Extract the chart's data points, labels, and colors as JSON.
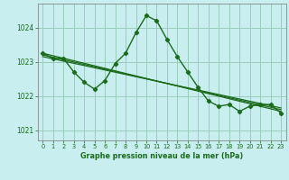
{
  "title": "Graphe pression niveau de la mer (hPa)",
  "bg_color": "#c8eef0",
  "grid_color": "#99ccbb",
  "line_color": "#1a6b1a",
  "xlim": [
    -0.5,
    23.5
  ],
  "ylim": [
    1020.7,
    1024.7
  ],
  "yticks": [
    1021,
    1022,
    1023,
    1024
  ],
  "xticks": [
    0,
    1,
    2,
    3,
    4,
    5,
    6,
    7,
    8,
    9,
    10,
    11,
    12,
    13,
    14,
    15,
    16,
    17,
    18,
    19,
    20,
    21,
    22,
    23
  ],
  "series": [
    {
      "x": [
        0,
        1,
        2,
        3,
        4,
        5,
        6,
        7,
        8,
        9,
        10,
        11,
        12,
        13,
        14,
        15,
        16,
        17,
        18,
        19,
        20,
        21,
        22,
        23
      ],
      "y": [
        1023.25,
        1023.1,
        1023.1,
        1022.7,
        1022.4,
        1022.2,
        1022.45,
        1022.95,
        1023.25,
        1023.85,
        1024.35,
        1024.2,
        1023.65,
        1023.15,
        1022.7,
        1022.25,
        1021.85,
        1021.7,
        1021.75,
        1021.55,
        1021.7,
        1021.75,
        1021.75,
        1021.5
      ],
      "marker": "D",
      "markersize": 2.2,
      "linewidth": 1.0
    },
    {
      "x": [
        0,
        23
      ],
      "y": [
        1023.25,
        1021.55
      ],
      "marker": null,
      "linewidth": 0.9
    },
    {
      "x": [
        0,
        23
      ],
      "y": [
        1023.2,
        1021.6
      ],
      "marker": null,
      "linewidth": 0.9
    },
    {
      "x": [
        0,
        23
      ],
      "y": [
        1023.15,
        1021.65
      ],
      "marker": null,
      "linewidth": 0.9
    }
  ],
  "xlabel_fontsize": 5.8,
  "ytick_fontsize": 5.5,
  "xtick_fontsize": 4.8
}
